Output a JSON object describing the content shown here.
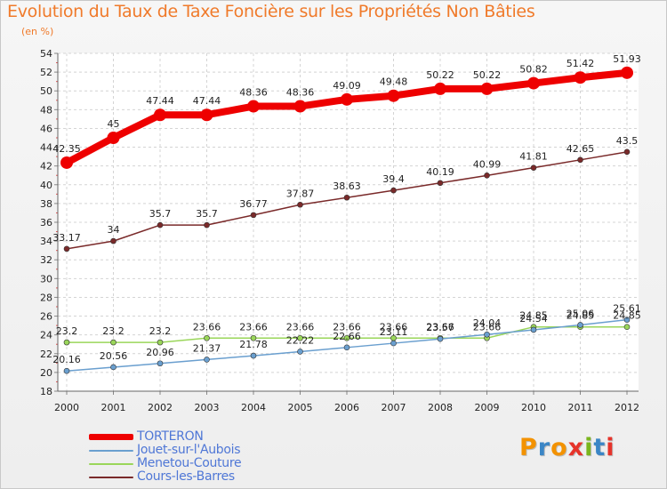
{
  "header": {
    "title": "Evolution du Taux de Taxe Foncière sur les Propriétés Non Bâties",
    "unit": "(en %)"
  },
  "brand": {
    "text": "Proxiti",
    "colors": [
      "#f39200",
      "#3b86c6",
      "#f39200",
      "#e6332a",
      "#7ab51d",
      "#3b86c6",
      "#e6332a"
    ]
  },
  "chart_data": {
    "type": "line",
    "title": "Evolution du Taux de Taxe Foncière sur les Propriétés Non Bâties",
    "ylabel": "(en %)",
    "xlabel": "",
    "ylim": [
      18,
      54
    ],
    "yticks": [
      18,
      20,
      22,
      24,
      26,
      28,
      30,
      32,
      34,
      36,
      38,
      40,
      42,
      44,
      46,
      48,
      50,
      52,
      54
    ],
    "grid": true,
    "legend_position": "bottom-left",
    "x": [
      "2000",
      "2001",
      "2002",
      "2003",
      "2004",
      "2005",
      "2006",
      "2007",
      "2008",
      "2009",
      "2010",
      "2011",
      "2012"
    ],
    "series": [
      {
        "name": "TORTERON",
        "color": "#ee0000",
        "width": 8,
        "marker": 7,
        "values": [
          42.35,
          45,
          47.44,
          47.44,
          48.36,
          48.36,
          49.09,
          49.48,
          50.22,
          50.22,
          50.82,
          51.42,
          51.93
        ],
        "labels": [
          "42.35",
          "45",
          "47.44",
          "47.44",
          "48.36",
          "48.36",
          "49.09",
          "49.48",
          "50.22",
          "50.22",
          "50.82",
          "51.42",
          "51.93"
        ]
      },
      {
        "name": "Jouet-sur-l'Aubois",
        "color": "#6a9fcf",
        "width": 1.5,
        "marker": 3,
        "values": [
          20.16,
          20.56,
          20.96,
          21.37,
          21.78,
          22.22,
          22.66,
          23.11,
          23.57,
          24.04,
          24.54,
          25.06,
          25.61
        ],
        "labels": [
          "20.16",
          "20.56",
          "20.96",
          "21.37",
          "21.78",
          "22.22",
          "22.66",
          "23.11",
          "23.57",
          "24.04",
          "24.54",
          "25.06",
          "25.61"
        ]
      },
      {
        "name": "Menetou-Couture",
        "color": "#9ad65a",
        "width": 1.5,
        "marker": 3,
        "values": [
          23.2,
          23.2,
          23.2,
          23.66,
          23.66,
          23.66,
          23.66,
          23.66,
          23.66,
          23.66,
          24.85,
          24.85,
          24.85
        ],
        "labels": [
          "23.2",
          "23.2",
          "23.2",
          "23.66",
          "23.66",
          "23.66",
          "23.66",
          "23.66",
          "23.66",
          "23.66",
          "24.85",
          "24.85",
          "24.85"
        ]
      },
      {
        "name": "Cours-les-Barres",
        "color": "#7a2a2a",
        "width": 1.5,
        "marker": 3,
        "values": [
          33.17,
          34,
          35.7,
          35.7,
          36.77,
          37.87,
          38.63,
          39.4,
          40.19,
          40.99,
          41.81,
          42.65,
          43.5
        ],
        "labels": [
          "33.17",
          "34",
          "35.7",
          "35.7",
          "36.77",
          "37.87",
          "38.63",
          "39.4",
          "40.19",
          "40.99",
          "41.81",
          "42.65",
          "43.5"
        ]
      }
    ]
  }
}
